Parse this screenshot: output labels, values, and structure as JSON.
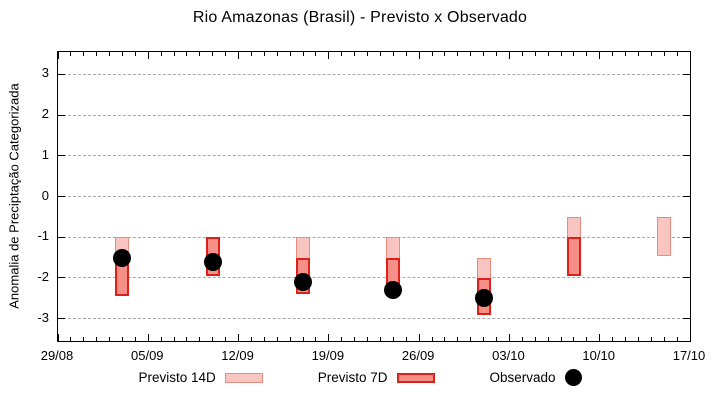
{
  "title": "Rio Amazonas (Brasil) - Previsto x Observado",
  "chart_data": {
    "type": "bar",
    "title": "Rio Amazonas (Brasil) - Previsto x Observado",
    "xlabel": "",
    "ylabel": "Anomalia de Preciptação Categorizada",
    "ylim": [
      -3.55,
      3.55
    ],
    "y_ticks": [
      -3,
      -2,
      -1,
      0,
      1,
      2,
      3
    ],
    "x_start": "29/08",
    "x_end": "17/10",
    "x_major_ticks": [
      "29/08",
      "05/09",
      "12/09",
      "19/09",
      "26/09",
      "03/10",
      "10/10",
      "17/10"
    ],
    "x_minor_tick_interval_days": 1,
    "grid": "horizontal-dashed",
    "legend_position": "bottom-center",
    "series": [
      {
        "name": "Previsto 14D",
        "type": "range-bar",
        "fill": "#f8c5c0",
        "border": "#e88c80"
      },
      {
        "name": "Previsto 7D",
        "type": "range-bar",
        "fill": "#f78f89",
        "border": "#dd2018"
      },
      {
        "name": "Observado",
        "type": "point",
        "color": "#000000"
      }
    ],
    "groups": [
      {
        "date": "03/09",
        "previsto_14d": [
          -1.0,
          -2.45
        ],
        "previsto_7d": [
          -1.5,
          -2.45
        ],
        "observado": -1.5
      },
      {
        "date": "10/09",
        "previsto_14d": [
          -1.0,
          -1.95
        ],
        "previsto_7d": [
          -1.0,
          -1.95
        ],
        "observado": -1.6
      },
      {
        "date": "17/09",
        "previsto_14d": [
          -1.0,
          -2.4
        ],
        "previsto_7d": [
          -1.5,
          -2.4
        ],
        "observado": -2.1
      },
      {
        "date": "24/09",
        "previsto_14d": [
          -1.0,
          -2.45
        ],
        "previsto_7d": [
          -1.5,
          -2.45
        ],
        "observado": -2.3
      },
      {
        "date": "01/10",
        "previsto_14d": [
          -1.5,
          -2.9
        ],
        "previsto_7d": [
          -2.0,
          -2.9
        ],
        "observado": -2.5
      },
      {
        "date": "08/10",
        "previsto_14d": [
          -0.5,
          -1.95
        ],
        "previsto_7d": [
          -1.0,
          -1.95
        ],
        "observado": null
      },
      {
        "date": "15/10",
        "previsto_14d": [
          -0.5,
          -1.45
        ],
        "previsto_7d": null,
        "observado": null
      }
    ],
    "colors": {
      "grid": "#a8a8a8",
      "axis": "#000000",
      "previsto_14d_fill": "#f8c5c0",
      "previsto_14d_border": "#e88c80",
      "previsto_7d_fill": "#f78f89",
      "previsto_7d_border": "#dd2018",
      "observado": "#000000",
      "background": "#ffffff"
    }
  },
  "legend": {
    "items": [
      {
        "label": "Previsto 14D"
      },
      {
        "label": "Previsto 7D"
      },
      {
        "label": "Observado"
      }
    ]
  }
}
